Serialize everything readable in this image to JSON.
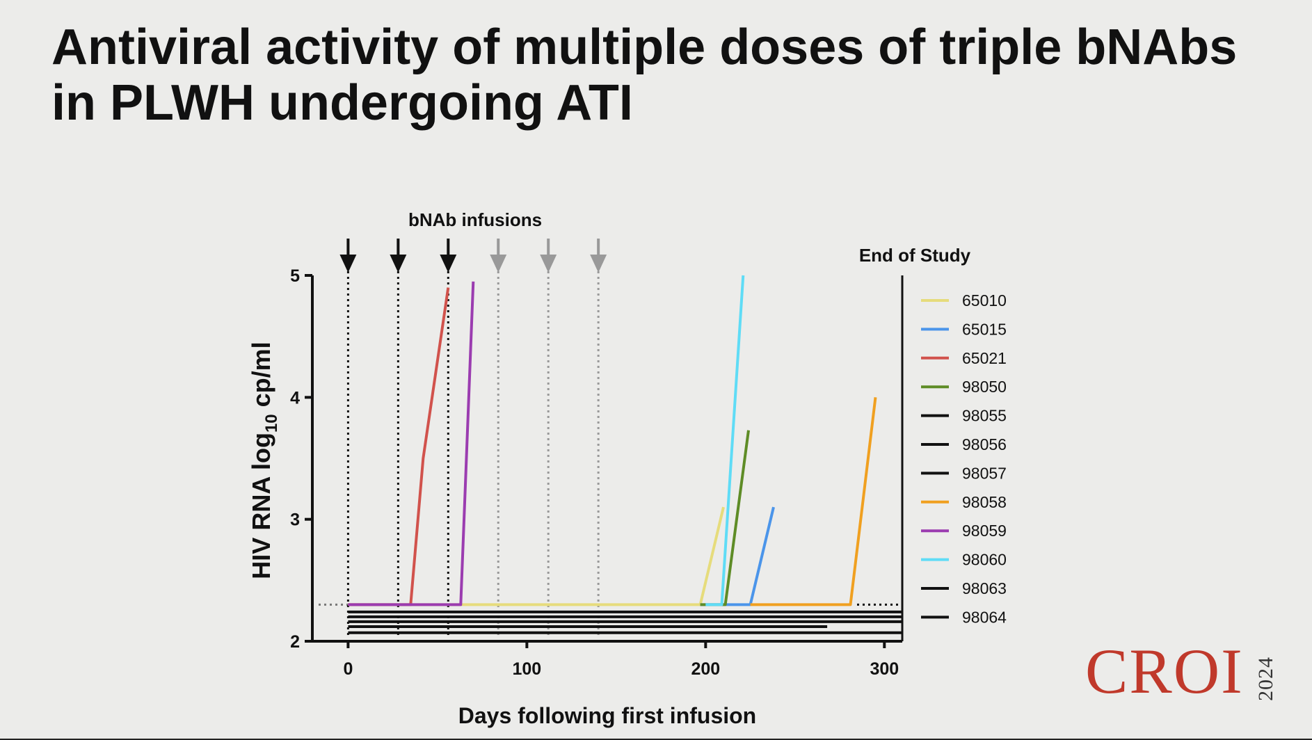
{
  "slide": {
    "title_line1": "Antiviral activity of multiple doses of triple bNAbs",
    "title_line2": "in PLWH undergoing ATI"
  },
  "logo": {
    "word": "CROI",
    "year": "2024"
  },
  "chart_data": {
    "type": "line",
    "xlabel": "Days following first infusion",
    "ylabel_main": "HIV RNA log",
    "ylabel_sub": "10",
    "ylabel_unit": " cp/ml",
    "xlim": [
      -20,
      310
    ],
    "ylim": [
      2,
      5
    ],
    "xticks": [
      0,
      100,
      200,
      300
    ],
    "yticks": [
      2,
      3,
      4,
      5
    ],
    "lower_limit_of_detection": 2.3,
    "infusion_label": "bNAb infusions",
    "end_of_study_label": "End of Study",
    "end_of_study_day": 310,
    "infusions": [
      {
        "day": 0,
        "color": "#111111"
      },
      {
        "day": 28,
        "color": "#111111"
      },
      {
        "day": 56,
        "color": "#111111"
      },
      {
        "day": 84,
        "color": "#999999"
      },
      {
        "day": 112,
        "color": "#999999"
      },
      {
        "day": 140,
        "color": "#999999"
      }
    ],
    "series": [
      {
        "name": "65010",
        "color": "#e6dc7c",
        "points": [
          [
            0,
            2.3
          ],
          [
            197,
            2.3
          ],
          [
            210,
            3.1
          ]
        ]
      },
      {
        "name": "65015",
        "color": "#4b95ea",
        "points": [
          [
            197,
            2.3
          ],
          [
            225,
            2.3
          ],
          [
            238,
            3.1
          ]
        ]
      },
      {
        "name": "65021",
        "color": "#d1524c",
        "points": [
          [
            0,
            2.3
          ],
          [
            35,
            2.3
          ],
          [
            42,
            3.5
          ],
          [
            56,
            4.9
          ]
        ]
      },
      {
        "name": "98050",
        "color": "#5e8c26",
        "points": [
          [
            197,
            2.3
          ],
          [
            211,
            2.3
          ],
          [
            224,
            3.73
          ]
        ]
      },
      {
        "name": "98055",
        "color": "#111111",
        "points": [
          [
            0,
            2.24
          ],
          [
            310,
            2.24
          ]
        ]
      },
      {
        "name": "98056",
        "color": "#111111",
        "points": [
          [
            0,
            2.2
          ],
          [
            310,
            2.2
          ]
        ]
      },
      {
        "name": "98057",
        "color": "#111111",
        "points": [
          [
            0,
            2.16
          ],
          [
            310,
            2.16
          ]
        ]
      },
      {
        "name": "98058",
        "color": "#f0a020",
        "points": [
          [
            225,
            2.3
          ],
          [
            281,
            2.3
          ],
          [
            295,
            4.0
          ]
        ]
      },
      {
        "name": "98059",
        "color": "#9b3cb0",
        "points": [
          [
            0,
            2.3
          ],
          [
            63,
            2.3
          ],
          [
            70,
            4.95
          ]
        ]
      },
      {
        "name": "98060",
        "color": "#5fdcf6",
        "points": [
          [
            200,
            2.3
          ],
          [
            209,
            2.3
          ],
          [
            221,
            5.0
          ]
        ]
      },
      {
        "name": "98063",
        "color": "#111111",
        "points": [
          [
            0,
            2.12
          ],
          [
            268,
            2.12
          ]
        ]
      },
      {
        "name": "98064",
        "color": "#111111",
        "points": [
          [
            0,
            2.07
          ],
          [
            310,
            2.07
          ]
        ]
      }
    ]
  }
}
